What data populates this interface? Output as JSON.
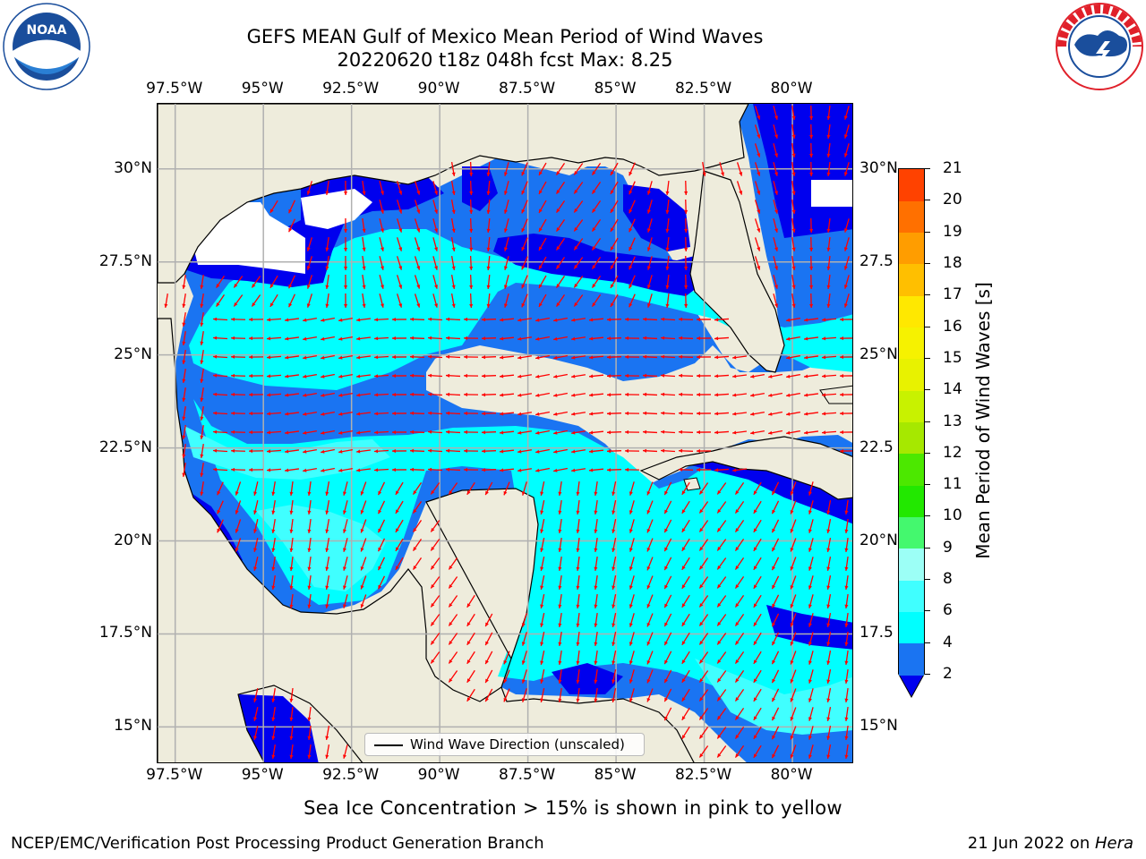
{
  "header": {
    "title_line1": "GEFS MEAN Gulf of Mexico Mean Period of Wind Waves",
    "title_line2": "20220620 t18z 048h fcst   Max: 8.25"
  },
  "logos": {
    "left": {
      "name": "NOAA",
      "ring_text": "NATIONAL OCEANIC AND ATMOSPHERIC ADMINISTRATION · U.S. DEPARTMENT OF COMMERCE",
      "colors": [
        "#1a4e9c",
        "#ffffff"
      ]
    },
    "right": {
      "name": "NATIONAL WEATHER SERVICE",
      "colors": [
        "#e0202a",
        "#1a4e9c"
      ]
    }
  },
  "axes": {
    "lon_labels": [
      "97.5°W",
      "95°W",
      "92.5°W",
      "90°W",
      "87.5°W",
      "85°W",
      "82.5°W",
      "80°W"
    ],
    "lon_values": [
      -97.5,
      -95,
      -92.5,
      -90,
      -87.5,
      -85,
      -82.5,
      -80
    ],
    "lat_labels": [
      "30°N",
      "27.5°N",
      "25°N",
      "22.5°N",
      "20°N",
      "17.5°N",
      "15°N"
    ],
    "lat_values": [
      30,
      27.5,
      25,
      22.5,
      20,
      17.5,
      15
    ],
    "lat_labels_right": [
      "30°N",
      "27.5",
      "25°N",
      "22.5",
      "20°N",
      "17.5",
      "15°N"
    ],
    "lon_range": [
      -98,
      -78.25
    ],
    "lat_range": [
      14,
      31.75
    ],
    "grid": true
  },
  "colorbar": {
    "label": "Mean Period of Wind Waves [s]",
    "ticks": [
      "2",
      "4",
      "6",
      "8",
      "9",
      "10",
      "11",
      "12",
      "13",
      "14",
      "15",
      "16",
      "17",
      "18",
      "19",
      "20",
      "21"
    ],
    "levels": [
      2,
      4,
      6,
      8,
      9,
      10,
      11,
      12,
      13,
      14,
      15,
      16,
      17,
      18,
      19,
      20,
      21
    ],
    "colors": [
      "#1a74f2",
      "#00ffff",
      "#40ffff",
      "#9cfff6",
      "#44f86e",
      "#22e800",
      "#4ce800",
      "#a6e800",
      "#c8f200",
      "#e8f200",
      "#f6f200",
      "#ffe800",
      "#ffbf00",
      "#ff9d00",
      "#ff7000",
      "#ff4200",
      "#ff0000"
    ],
    "under_color": "#0000ee"
  },
  "map_colors": {
    "land": "#eeecdc",
    "no_data": "#ffffff",
    "period_2_4": "#1a74f2",
    "period_4_6": "#00ffff",
    "period_6_8": "#40ffff",
    "period_below_2": "#0000ee",
    "arrow": "#ff0000",
    "grid": "#b0b0b0"
  },
  "legend": {
    "label": "Wind Wave Direction (unscaled)"
  },
  "note": "Sea Ice Concentration > 15% is shown in pink to yellow",
  "footer": {
    "left": "NCEP/EMC/Verification Post Processing Product Generation Branch",
    "right_date": "21 Jun 2022 on ",
    "right_host": "Hera"
  }
}
